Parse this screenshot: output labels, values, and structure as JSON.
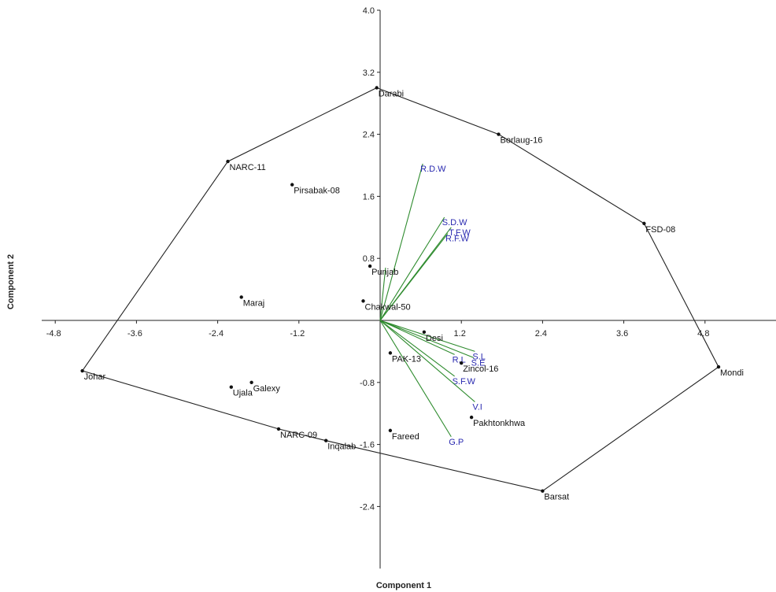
{
  "chart_data": {
    "type": "scatter",
    "subtype": "biplot",
    "title": "",
    "xlabel": "Component 1",
    "ylabel": "Component 2",
    "xlim": [
      -5.0,
      5.2
    ],
    "ylim": [
      -3.2,
      4.0
    ],
    "x_ticks": [
      {
        "value": -4.8,
        "label": "-4.8"
      },
      {
        "value": -3.6,
        "label": "-3.6"
      },
      {
        "value": -2.4,
        "label": "-2.4"
      },
      {
        "value": -1.2,
        "label": "-1.2"
      },
      {
        "value": 1.2,
        "label": "1.2"
      },
      {
        "value": 2.4,
        "label": "2.4"
      },
      {
        "value": 3.6,
        "label": "3.6"
      },
      {
        "value": 4.8,
        "label": "4.8"
      }
    ],
    "y_ticks": [
      {
        "value": 4.0,
        "label": "4.0"
      },
      {
        "value": 3.2,
        "label": "3.2"
      },
      {
        "value": 2.4,
        "label": "2.4"
      },
      {
        "value": 1.6,
        "label": "1.6"
      },
      {
        "value": 0.8,
        "label": "0.8"
      },
      {
        "value": -0.8,
        "label": "-0.8"
      },
      {
        "value": -1.6,
        "label": "-1.6"
      },
      {
        "value": -2.4,
        "label": "-2.4"
      }
    ],
    "points": [
      {
        "name": "Darabi",
        "x": -0.05,
        "y": 3.0
      },
      {
        "name": "Borlaug-16",
        "x": 1.75,
        "y": 2.4
      },
      {
        "name": "FSD-08",
        "x": 3.9,
        "y": 1.25
      },
      {
        "name": "Mondi",
        "x": 5.0,
        "y": -0.6
      },
      {
        "name": "Barsat",
        "x": 2.4,
        "y": -2.2
      },
      {
        "name": "Inqalab",
        "x": -0.8,
        "y": -1.55
      },
      {
        "name": "NARC-09",
        "x": -1.5,
        "y": -1.4
      },
      {
        "name": "Johar",
        "x": -4.4,
        "y": -0.65
      },
      {
        "name": "NARC-11",
        "x": -2.25,
        "y": 2.05
      },
      {
        "name": "Pirsabak-08",
        "x": -1.3,
        "y": 1.75
      },
      {
        "name": "Punjab",
        "x": -0.15,
        "y": 0.7
      },
      {
        "name": "Maraj",
        "x": -2.05,
        "y": 0.3
      },
      {
        "name": "Chakwal-50",
        "x": -0.25,
        "y": 0.25
      },
      {
        "name": "Desi",
        "x": 0.65,
        "y": -0.15
      },
      {
        "name": "PAK-13",
        "x": 0.15,
        "y": -0.42
      },
      {
        "name": "Zincol-16",
        "x": 1.2,
        "y": -0.55
      },
      {
        "name": "Pakhtonkhwa",
        "x": 1.35,
        "y": -1.25
      },
      {
        "name": "Fareed",
        "x": 0.15,
        "y": -1.42
      },
      {
        "name": "Galexy",
        "x": -1.9,
        "y": -0.8
      },
      {
        "name": "Ujala",
        "x": -2.2,
        "y": -0.86
      }
    ],
    "hull": [
      "Darabi",
      "Borlaug-16",
      "FSD-08",
      "Mondi",
      "Barsat",
      "Inqalab",
      "NARC-09",
      "Johar",
      "NARC-11"
    ],
    "vectors": [
      {
        "name": "R.D.W",
        "x": 0.63,
        "y": 2.02
      },
      {
        "name": "S.D.W",
        "x": 0.95,
        "y": 1.33
      },
      {
        "name": "T.F.W",
        "x": 1.05,
        "y": 1.2
      },
      {
        "name": "R.F.W",
        "x": 1.0,
        "y": 1.12
      },
      {
        "name": "",
        "x": 0.08,
        "y": 0.68
      },
      {
        "name": "S.L",
        "x": 1.4,
        "y": -0.4
      },
      {
        "name": "R.L",
        "x": 1.1,
        "y": -0.44
      },
      {
        "name": "S.E",
        "x": 1.38,
        "y": -0.48
      },
      {
        "name": "S.F.W",
        "x": 1.1,
        "y": -0.72
      },
      {
        "name": "V.I",
        "x": 1.4,
        "y": -1.05
      },
      {
        "name": "G.P",
        "x": 1.05,
        "y": -1.5
      }
    ],
    "colors": {
      "hull": "#222222",
      "vector": "#2e8b2e",
      "vector_label": "#2a2ab0",
      "point": "#111111",
      "axis": "#222222"
    },
    "grid": false,
    "legend": "none"
  }
}
